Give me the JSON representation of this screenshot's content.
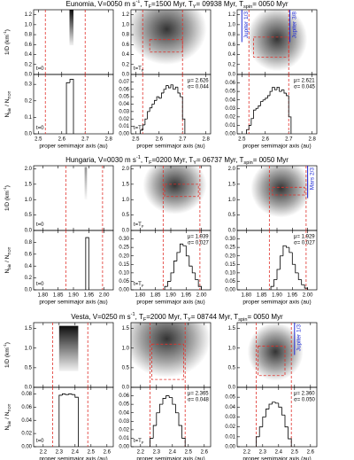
{
  "figure": {
    "x_label": "proper semimajor axis (au)",
    "y_label_top": {
      "segments": [
        "1/D (km",
        "-1",
        ")"
      ],
      "scripts": [
        "",
        "sup",
        ""
      ]
    },
    "y_label_bottom": {
      "segments": [
        "N",
        "bin",
        " / N",
        "TOT"
      ],
      "scripts": [
        "",
        "sub",
        "",
        "sub"
      ]
    },
    "colors": {
      "boundary": "#e0302a",
      "box": "#e0302a",
      "resonance": "#1f2bd6",
      "histogram": "#000000"
    },
    "families": [
      {
        "title": {
          "segments": [
            "Eunomia, V=0050 m s",
            "-1",
            ", T",
            "F",
            "=1500 Myr, T",
            "Y",
            "= 09938 Myr, T",
            "spin",
            "= 0050 Myr"
          ],
          "scripts": [
            "",
            "sup",
            "",
            "sub",
            "",
            "sub",
            "",
            "sub",
            ""
          ]
        },
        "xlim": [
          2.48,
          2.82
        ],
        "xticks": [
          2.5,
          2.6,
          2.7,
          2.8
        ],
        "boundaries": [
          2.53,
          2.7
        ],
        "top_ylim": [
          0,
          1.3
        ],
        "top_yticks": [
          {
            "value": 0,
            "label": "0.0"
          },
          0.2,
          0.4,
          0.6,
          0.8,
          {
            "value": 1,
            "label": "1.0"
          },
          1.2
        ],
        "columns": [
          {
            "top_note": {
              "segments": [
                "t=0"
              ],
              "scripts": [
                ""
              ]
            },
            "bottom_note": {
              "segments": [
                "t=0"
              ],
              "scripts": [
                ""
              ]
            },
            "bottom_ylim": [
              0,
              0.36
            ],
            "bottom_yticks": [
              {
                "value": 0,
                "label": "0.0"
              },
              0.1,
              0.2,
              0.3
            ],
            "bins": [
              2.62,
              2.635,
              2.65
            ],
            "counts": [
              0.31,
              0.33
            ]
          },
          {
            "top_note": {
              "segments": [
                "t=T",
                "F"
              ],
              "scripts": [
                "",
                "sub"
              ]
            },
            "bottom_note": {
              "segments": [
                "t=T",
                "F"
              ],
              "scripts": [
                "",
                "sub"
              ]
            },
            "bottom_ylim": [
              0,
              0.08
            ],
            "bottom_yticks": [
              {
                "value": 0,
                "label": "0.00"
              },
              0.01,
              0.02,
              0.03,
              0.04,
              0.05,
              0.06,
              0.07
            ],
            "bins": [
              2.52,
              2.53,
              2.54,
              2.55,
              2.56,
              2.57,
              2.58,
              2.59,
              2.6,
              2.61,
              2.62,
              2.63,
              2.64,
              2.65,
              2.66,
              2.67,
              2.68,
              2.69,
              2.7,
              2.71
            ],
            "counts": [
              0.005,
              0.012,
              0.02,
              0.03,
              0.035,
              0.04,
              0.045,
              0.05,
              0.048,
              0.055,
              0.06,
              0.065,
              0.062,
              0.066,
              0.06,
              0.063,
              0.055,
              0.05,
              0.02
            ],
            "box": {
              "x": [
                2.56,
                2.7
              ],
              "y": [
                0.45,
                0.7
              ]
            },
            "mu_label": "μ= 2.626",
            "sigma_label": "σ= 0.044"
          },
          {
            "bottom_ylim": [
              0,
              0.07
            ],
            "bottom_yticks": [
              {
                "value": 0,
                "label": "0.00"
              },
              0.01,
              0.02,
              0.03,
              0.04,
              0.05,
              0.06
            ],
            "bins": [
              2.52,
              2.53,
              2.54,
              2.55,
              2.56,
              2.57,
              2.58,
              2.59,
              2.6,
              2.61,
              2.62,
              2.63,
              2.64,
              2.65,
              2.66,
              2.67,
              2.68,
              2.69,
              2.7,
              2.71
            ],
            "counts": [
              0.005,
              0.01,
              0.018,
              0.028,
              0.03,
              0.033,
              0.038,
              0.04,
              0.042,
              0.045,
              0.05,
              0.055,
              0.052,
              0.055,
              0.05,
              0.052,
              0.048,
              0.045,
              0.02
            ],
            "box": {
              "x": [
                2.55,
                2.7
              ],
              "y": [
                0.35,
                0.75
              ]
            },
            "mu_label": "μ= 2.621",
            "sigma_label": "σ= 0.045",
            "resonances": [
              {
                "name": "Jupiter 1/3",
                "x": 2.5
              },
              {
                "name": "Jupiter 3/8",
                "x": 2.705
              }
            ]
          }
        ]
      },
      {
        "title": {
          "segments": [
            "Hungaria, V=0030 m s",
            "-1",
            ", T",
            "F",
            "=0200 Myr, T",
            "Y",
            "= 06737 Myr, T",
            "spin",
            "= 0050 Myr"
          ],
          "scripts": [
            "",
            "sup",
            "",
            "sub",
            "",
            "sub",
            "",
            "sub",
            ""
          ]
        },
        "xlim": [
          1.77,
          2.03
        ],
        "xticks": [
          {
            "value": 1.8,
            "label": "1.80"
          },
          1.85,
          {
            "value": 1.9,
            "label": "1.90"
          },
          1.95,
          {
            "value": 2,
            "label": "2.00"
          }
        ],
        "boundaries": [
          1.875,
          1.995
        ],
        "top_ylim": [
          0,
          2.1
        ],
        "top_yticks": [
          {
            "value": 0,
            "label": "0.0"
          },
          0.5,
          {
            "value": 1,
            "label": "1.0"
          },
          1.5,
          {
            "value": 2,
            "label": "2.0"
          }
        ],
        "columns": [
          {
            "top_note": {
              "segments": [
                "t=0"
              ],
              "scripts": [
                ""
              ]
            },
            "bottom_note": {
              "segments": [
                "t=0"
              ],
              "scripts": [
                ""
              ]
            },
            "bottom_ylim": [
              0,
              1
            ],
            "bottom_yticks": [
              {
                "value": 0,
                "label": "0.0"
              },
              0.2,
              0.4,
              0.6,
              0.8
            ],
            "bins": [
              1.94,
              1.95
            ],
            "counts": [
              0.88
            ]
          },
          {
            "top_note": {
              "segments": [
                "t=T",
                "F"
              ],
              "scripts": [
                "",
                "sub"
              ]
            },
            "bottom_note": {
              "segments": [
                "t=T",
                "F"
              ],
              "scripts": [
                "",
                "sub"
              ]
            },
            "bottom_ylim": [
              0,
              0.35
            ],
            "bottom_yticks": [
              {
                "value": 0,
                "label": "0.00"
              },
              0.05,
              {
                "value": 0.1,
                "label": "0.10"
              },
              0.15,
              {
                "value": 0.2,
                "label": "0.20"
              },
              0.25,
              {
                "value": 0.3,
                "label": "0.30"
              }
            ],
            "bins": [
              1.88,
              1.89,
              1.9,
              1.91,
              1.92,
              1.93,
              1.94,
              1.95,
              1.96,
              1.97,
              1.98,
              1.99,
              2.0
            ],
            "counts": [
              0.02,
              0.05,
              0.1,
              0.17,
              0.22,
              0.27,
              0.26,
              0.2,
              0.14,
              0.1,
              0.06,
              0.02
            ],
            "box": {
              "x": [
                1.88,
                1.99
              ],
              "y": [
                1.1,
                1.5
              ]
            },
            "mu_label": "μ= 1.939",
            "sigma_label": "σ= 0.027"
          },
          {
            "bottom_ylim": [
              0,
              0.35
            ],
            "bottom_yticks": [
              {
                "value": 0,
                "label": "0.00"
              },
              0.05,
              {
                "value": 0.1,
                "label": "0.10"
              },
              0.15,
              {
                "value": 0.2,
                "label": "0.20"
              },
              0.25,
              {
                "value": 0.3,
                "label": "0.30"
              }
            ],
            "bins": [
              1.88,
              1.89,
              1.9,
              1.91,
              1.92,
              1.93,
              1.94,
              1.95,
              1.96,
              1.97,
              1.98,
              1.99,
              2.0
            ],
            "counts": [
              0.02,
              0.06,
              0.12,
              0.2,
              0.26,
              0.25,
              0.22,
              0.15,
              0.1,
              0.06,
              0.03,
              0.01
            ],
            "box": {
              "x": [
                1.885,
                1.99
              ],
              "y": [
                1.15,
                1.4
              ]
            },
            "mu_label": "μ= 1.929",
            "sigma_label": "σ= 0.027",
            "resonances": [
              {
                "name": "Mars 2/3",
                "x": 2.0
              }
            ]
          }
        ]
      },
      {
        "title": {
          "segments": [
            "Vesta, V=0250 m s",
            "-1",
            ", T",
            "F",
            "=2000 Myr, T",
            "Y",
            "= 08744 Myr, T",
            "spin",
            "= 0050 Myr"
          ],
          "scripts": [
            "",
            "sup",
            "",
            "sub",
            "",
            "sub",
            "",
            "sub",
            ""
          ]
        },
        "xlim": [
          2.14,
          2.64
        ],
        "xticks": [
          2.2,
          2.3,
          2.4,
          2.5,
          2.6
        ],
        "boundaries": [
          2.26,
          2.48
        ],
        "top_ylim": [
          0,
          1.65
        ],
        "top_yticks": [
          {
            "value": 0,
            "label": "0.0"
          },
          0.5,
          {
            "value": 1,
            "label": "1.0"
          },
          1.5
        ],
        "columns": [
          {
            "bottom_note": {
              "segments": [
                "t=0"
              ],
              "scripts": [
                ""
              ]
            },
            "bottom_ylim": [
              0,
              0.09
            ],
            "bottom_yticks": [
              {
                "value": 0,
                "label": "0.00"
              },
              0.02,
              0.04,
              0.06,
              0.08
            ],
            "bins": [
              2.3,
              2.32,
              2.34,
              2.36,
              2.38,
              2.4,
              2.42
            ],
            "counts": [
              0.078,
              0.08,
              0.079,
              0.08,
              0.079,
              0.075
            ]
          },
          {
            "bottom_note": {
              "segments": [
                "t=T",
                "F"
              ],
              "scripts": [
                "",
                "sub"
              ]
            },
            "bottom_ylim": [
              0,
              0.07
            ],
            "bottom_yticks": [
              {
                "value": 0,
                "label": "0.00"
              },
              0.01,
              0.02,
              0.03,
              0.04,
              0.05,
              0.06
            ],
            "bins": [
              2.26,
              2.28,
              2.3,
              2.32,
              2.34,
              2.36,
              2.38,
              2.4,
              2.42,
              2.44,
              2.46,
              2.48
            ],
            "counts": [
              0.01,
              0.025,
              0.04,
              0.05,
              0.057,
              0.06,
              0.058,
              0.05,
              0.04,
              0.025,
              0.01
            ],
            "box": {
              "x": [
                2.27,
                2.47
              ],
              "y": [
                0.2,
                1.1
              ]
            },
            "mu_label": "μ= 2.365",
            "sigma_label": "σ= 0.048"
          },
          {
            "bottom_ylim": [
              0,
              0.06
            ],
            "bottom_yticks": [
              {
                "value": 0,
                "label": "0.00"
              },
              0.01,
              0.02,
              0.03,
              0.04,
              0.05
            ],
            "bins": [
              2.26,
              2.28,
              2.3,
              2.32,
              2.34,
              2.36,
              2.38,
              2.4,
              2.42,
              2.44,
              2.46,
              2.48
            ],
            "counts": [
              0.01,
              0.02,
              0.03,
              0.038,
              0.043,
              0.045,
              0.044,
              0.04,
              0.032,
              0.02,
              0.008
            ],
            "box": {
              "x": [
                2.27,
                2.44
              ],
              "y": [
                0.3,
                1.05
              ]
            },
            "mu_label": "μ= 2.360",
            "sigma_label": "σ= 0.050",
            "resonances": [
              {
                "name": "Jupiter 1/3",
                "x": 2.5
              }
            ]
          }
        ]
      }
    ]
  }
}
